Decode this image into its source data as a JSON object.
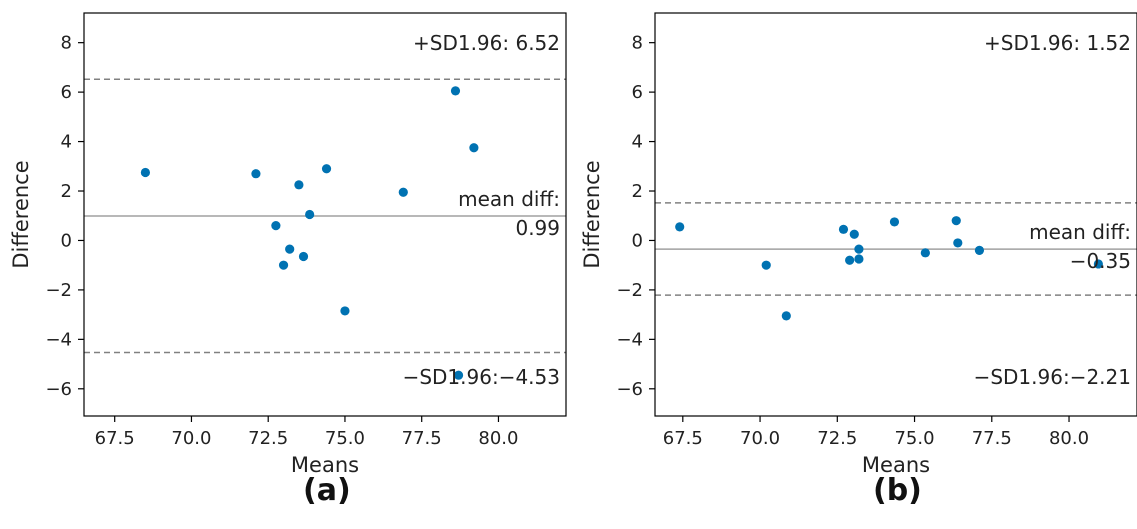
{
  "colors": {
    "point": "#0072b2",
    "mean_line": "#a0a0a0",
    "sd_line": "#808080",
    "axis": "#000000",
    "text": "#222222"
  },
  "panel_labels": [
    "(a)",
    "(b)"
  ],
  "chart_data": [
    {
      "type": "scatter",
      "panel_label": "(a)",
      "xlabel": "Means",
      "ylabel": "Difference",
      "xlim": [
        66.5,
        82.2
      ],
      "ylim": [
        -7.1,
        9.2
      ],
      "xticks": [
        67.5,
        70.0,
        72.5,
        75.0,
        77.5,
        80.0
      ],
      "xtick_labels": [
        "67.5",
        "70.0",
        "72.5",
        "75.0",
        "77.5",
        "80.0"
      ],
      "yticks": [
        -6,
        -4,
        -2,
        0,
        2,
        4,
        6,
        8
      ],
      "ytick_labels": [
        "−6",
        "−4",
        "−2",
        "0",
        "2",
        "4",
        "6",
        "8"
      ],
      "grid": false,
      "points": [
        {
          "x": 68.5,
          "y": 2.75
        },
        {
          "x": 72.1,
          "y": 2.7
        },
        {
          "x": 72.75,
          "y": 0.6
        },
        {
          "x": 73.0,
          "y": -1.0
        },
        {
          "x": 73.2,
          "y": -0.35
        },
        {
          "x": 73.5,
          "y": 2.25
        },
        {
          "x": 73.65,
          "y": -0.65
        },
        {
          "x": 73.85,
          "y": 1.05
        },
        {
          "x": 74.4,
          "y": 2.9
        },
        {
          "x": 75.0,
          "y": -2.85
        },
        {
          "x": 76.9,
          "y": 1.95
        },
        {
          "x": 78.6,
          "y": 6.05
        },
        {
          "x": 78.7,
          "y": -5.45
        },
        {
          "x": 79.2,
          "y": 3.75
        }
      ],
      "lines": [
        {
          "role": "upper_limit",
          "y": 6.52,
          "style": "dashed",
          "label": "+SD1.96: 6.52"
        },
        {
          "role": "mean",
          "y": 0.99,
          "style": "solid",
          "label_line1": "mean diff:",
          "label_line2": "0.99"
        },
        {
          "role": "lower_limit",
          "y": -4.53,
          "style": "dashed",
          "label": "−SD1.96:−4.53"
        }
      ]
    },
    {
      "type": "scatter",
      "panel_label": "(b)",
      "xlabel": "Means",
      "ylabel": "Difference",
      "xlim": [
        66.6,
        82.2
      ],
      "ylim": [
        -7.1,
        9.2
      ],
      "xticks": [
        67.5,
        70.0,
        72.5,
        75.0,
        77.5,
        80.0
      ],
      "xtick_labels": [
        "67.5",
        "70.0",
        "72.5",
        "75.0",
        "77.5",
        "80.0"
      ],
      "yticks": [
        -6,
        -4,
        -2,
        0,
        2,
        4,
        6,
        8
      ],
      "ytick_labels": [
        "−6",
        "−4",
        "−2",
        "0",
        "2",
        "4",
        "6",
        "8"
      ],
      "grid": false,
      "points": [
        {
          "x": 67.4,
          "y": 0.55
        },
        {
          "x": 70.2,
          "y": -1.0
        },
        {
          "x": 70.85,
          "y": -3.05
        },
        {
          "x": 72.7,
          "y": 0.45
        },
        {
          "x": 72.9,
          "y": -0.8
        },
        {
          "x": 73.05,
          "y": 0.25
        },
        {
          "x": 73.2,
          "y": -0.35
        },
        {
          "x": 73.2,
          "y": -0.75
        },
        {
          "x": 74.35,
          "y": 0.75
        },
        {
          "x": 75.35,
          "y": -0.5
        },
        {
          "x": 76.35,
          "y": 0.8
        },
        {
          "x": 76.4,
          "y": -0.1
        },
        {
          "x": 77.1,
          "y": -0.4
        },
        {
          "x": 80.95,
          "y": -0.95
        }
      ],
      "lines": [
        {
          "role": "upper_limit",
          "y": 1.52,
          "style": "dashed",
          "label": "+SD1.96: 1.52"
        },
        {
          "role": "mean",
          "y": -0.35,
          "style": "solid",
          "label_line1": "mean diff:",
          "label_line2": "−0.35"
        },
        {
          "role": "lower_limit",
          "y": -2.21,
          "style": "dashed",
          "label": "−SD1.96:−2.21"
        }
      ]
    }
  ]
}
